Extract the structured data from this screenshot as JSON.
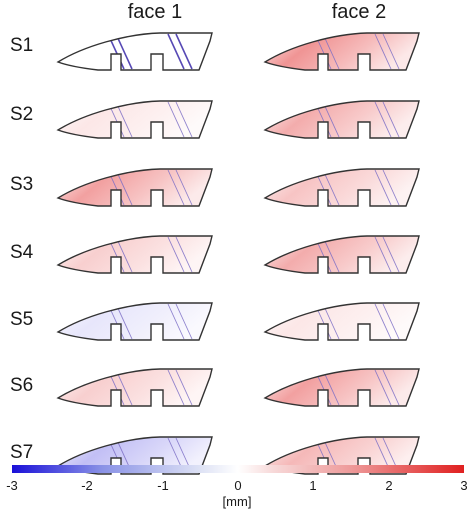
{
  "columns": [
    "face 1",
    "face 2"
  ],
  "rows": [
    "S1",
    "S2",
    "S3",
    "S4",
    "S5",
    "S6",
    "S7"
  ],
  "panels": [
    {
      "row": "S1",
      "face1": {
        "mean": 0.0,
        "highlight": "streaks"
      },
      "face2": {
        "mean": 0.9
      }
    },
    {
      "row": "S2",
      "face1": {
        "mean": 0.2
      },
      "face2": {
        "mean": 0.7
      }
    },
    {
      "row": "S3",
      "face1": {
        "mean": 0.8
      },
      "face2": {
        "mean": 0.5
      }
    },
    {
      "row": "S4",
      "face1": {
        "mean": 0.4
      },
      "face2": {
        "mean": 0.7
      }
    },
    {
      "row": "S5",
      "face1": {
        "mean": -0.2
      },
      "face2": {
        "mean": 0.2
      }
    },
    {
      "row": "S6",
      "face1": {
        "mean": 0.4
      },
      "face2": {
        "mean": 0.8
      }
    },
    {
      "row": "S7",
      "face1": {
        "mean": -0.5
      },
      "face2": {
        "mean": 0.6
      }
    }
  ],
  "colorbar": {
    "min": -3,
    "max": 3,
    "ticks": [
      "-3",
      "-2",
      "-1",
      "0",
      "1",
      "2",
      "3"
    ],
    "unit": "[mm]",
    "colors": {
      "negative": "#1a10d8",
      "zero": "#ffffff",
      "positive": "#e02020"
    }
  }
}
